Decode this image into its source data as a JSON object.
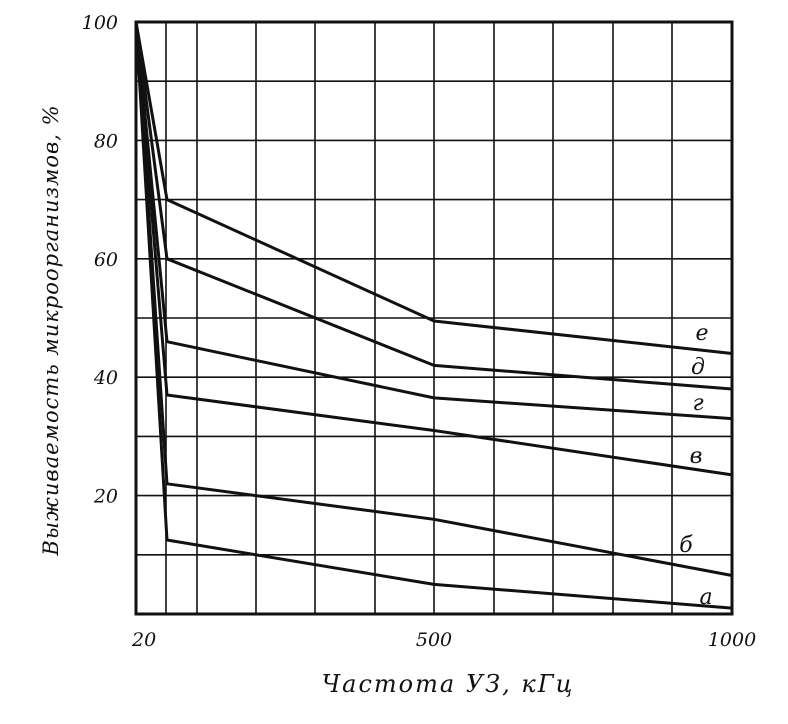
{
  "chart_data": {
    "type": "line",
    "ylabel": "Выживаемость микроорганизмов, %",
    "xlabel": "Частота УЗ, кГц",
    "ylim": [
      0,
      100
    ],
    "y_ticks": [
      "20",
      "40",
      "60",
      "80",
      "100"
    ],
    "x_ticks": [
      {
        "label": "20",
        "value": 20
      },
      {
        "label": "500",
        "value": 500
      },
      {
        "label": "1000",
        "value": 1000
      }
    ],
    "grid": true,
    "series": [
      {
        "name": "а",
        "points": [
          [
            20,
            100
          ],
          [
            70,
            12.5
          ],
          [
            500,
            5
          ],
          [
            1000,
            1
          ]
        ]
      },
      {
        "name": "б",
        "points": [
          [
            20,
            100
          ],
          [
            70,
            22
          ],
          [
            500,
            16
          ],
          [
            1000,
            6.5
          ]
        ]
      },
      {
        "name": "в",
        "points": [
          [
            20,
            100
          ],
          [
            70,
            37
          ],
          [
            500,
            31
          ],
          [
            1000,
            23.5
          ]
        ]
      },
      {
        "name": "г",
        "points": [
          [
            20,
            100
          ],
          [
            70,
            46
          ],
          [
            500,
            36.5
          ],
          [
            1000,
            33
          ]
        ]
      },
      {
        "name": "д",
        "points": [
          [
            20,
            100
          ],
          [
            70,
            60
          ],
          [
            500,
            42
          ],
          [
            1000,
            38
          ]
        ]
      },
      {
        "name": "е",
        "points": [
          [
            20,
            100
          ],
          [
            70,
            70
          ],
          [
            500,
            49.5
          ],
          [
            1000,
            44
          ]
        ]
      }
    ]
  }
}
